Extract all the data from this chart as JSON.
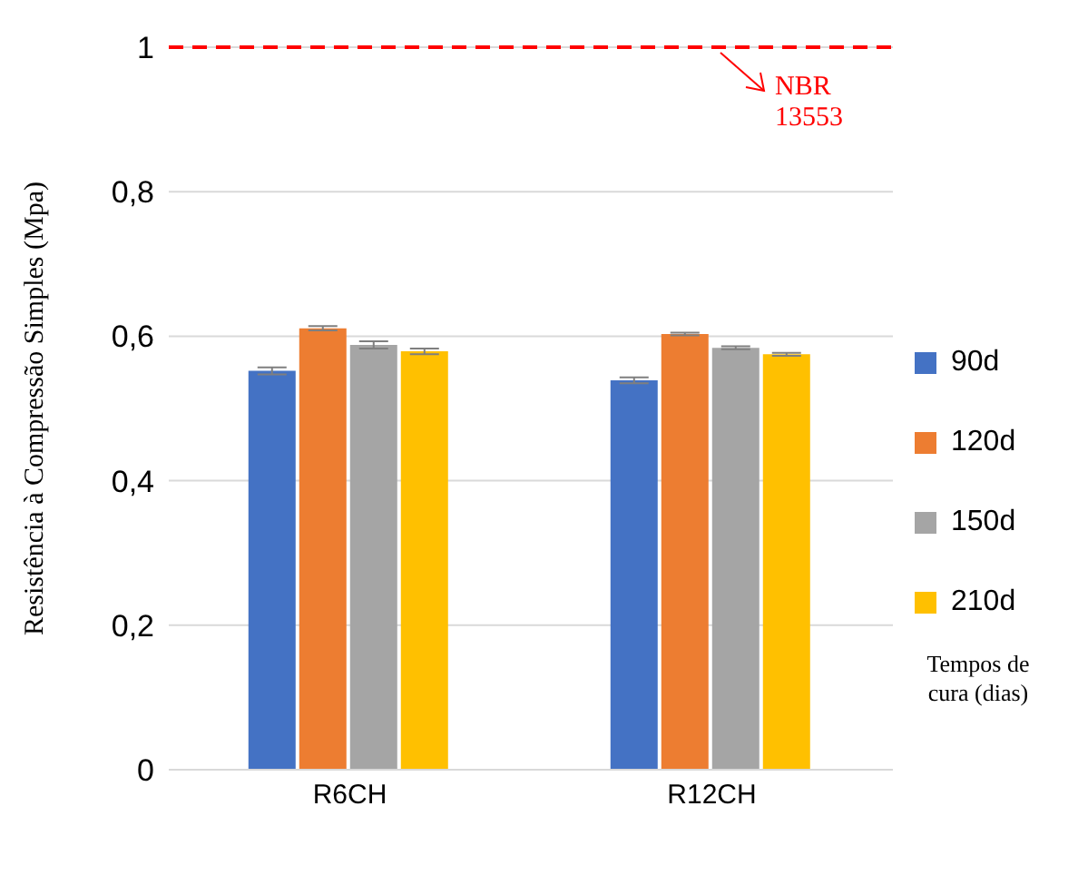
{
  "chart_data": {
    "type": "bar",
    "ylabel": "Resistência à Compressão Simples (Mpa)",
    "legend_title": "Tempos de cura (dias)",
    "categories": [
      "R6CH",
      "R12CH"
    ],
    "series": [
      {
        "name": "90d",
        "color": "#4472c4",
        "values": [
          0.552,
          0.539
        ],
        "errors": [
          0.005,
          0.004
        ]
      },
      {
        "name": "120d",
        "color": "#ed7d31",
        "values": [
          0.611,
          0.603
        ],
        "errors": [
          0.003,
          0.002
        ]
      },
      {
        "name": "150d",
        "color": "#a5a5a5",
        "values": [
          0.588,
          0.584
        ],
        "errors": [
          0.005,
          0.002
        ]
      },
      {
        "name": "210d",
        "color": "#ffc000",
        "values": [
          0.579,
          0.575
        ],
        "errors": [
          0.004,
          0.002
        ]
      }
    ],
    "ylim": [
      0,
      1
    ],
    "yticks": [
      0,
      {
        "value": 0.2,
        "label": "0,2"
      },
      {
        "value": 0.4,
        "label": "0,4"
      },
      {
        "value": 0.6,
        "label": "0,6"
      },
      {
        "value": 0.8,
        "label": "0,8"
      },
      1
    ],
    "grid": "y",
    "legend": "right",
    "ref_lines": [
      {
        "axis": "y",
        "value": 1,
        "label": "NBR 13553",
        "color": "#ff0000",
        "line_style": "dashed"
      }
    ]
  }
}
